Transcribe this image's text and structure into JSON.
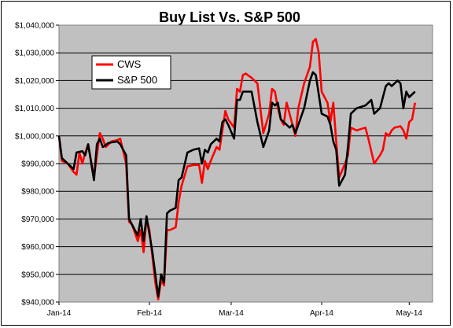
{
  "chart_data": {
    "type": "line",
    "title": "Buy List Vs. S&P 500",
    "xlabel": "",
    "ylabel": "",
    "ylim": [
      940000,
      1040000
    ],
    "y_ticks": [
      "$940,000",
      "$950,000",
      "$960,000",
      "$970,000",
      "$980,000",
      "$990,000",
      "$1,000,000",
      "$1,010,000",
      "$1,020,000",
      "$1,030,000",
      "$1,040,000"
    ],
    "x_ticks": [
      "Jan-14",
      "Feb-14",
      "Mar-14",
      "Apr-14",
      "May-14"
    ],
    "x_tick_positions": [
      0,
      31,
      59,
      90,
      120
    ],
    "xlim": [
      0,
      128
    ],
    "grid": "horizontal",
    "legend_position": "top-left",
    "plot_background": "#c0c0c0",
    "series": [
      {
        "name": "CWS",
        "color": "#ff0000",
        "points": [
          [
            0,
            1000000
          ],
          [
            1,
            991000
          ],
          [
            3,
            990000
          ],
          [
            5,
            987000
          ],
          [
            6,
            986000
          ],
          [
            7,
            994000
          ],
          [
            8,
            990000
          ],
          [
            9,
            994000
          ],
          [
            10,
            997000
          ],
          [
            12,
            985000
          ],
          [
            13,
            993000
          ],
          [
            14,
            1001000
          ],
          [
            15,
            999000
          ],
          [
            16,
            996000
          ],
          [
            18,
            998000
          ],
          [
            20,
            998500
          ],
          [
            21,
            999000
          ],
          [
            23,
            990000
          ],
          [
            24,
            969000
          ],
          [
            25,
            968000
          ],
          [
            27,
            962000
          ],
          [
            28,
            966000
          ],
          [
            29,
            958000
          ],
          [
            30,
            970000
          ],
          [
            31,
            966000
          ],
          [
            33,
            947000
          ],
          [
            34,
            941000
          ],
          [
            35,
            948000
          ],
          [
            36,
            946000
          ],
          [
            37,
            966000
          ],
          [
            38,
            966000
          ],
          [
            40,
            967000
          ],
          [
            41,
            976000
          ],
          [
            42,
            982000
          ],
          [
            44,
            989000
          ],
          [
            46,
            989500
          ],
          [
            48,
            989500
          ],
          [
            49,
            983000
          ],
          [
            50,
            991000
          ],
          [
            51,
            988000
          ],
          [
            52,
            991000
          ],
          [
            54,
            996000
          ],
          [
            55,
            995000
          ],
          [
            56,
            1002000
          ],
          [
            57,
            1009000
          ],
          [
            58,
            1006000
          ],
          [
            60,
            1003000
          ],
          [
            61,
            1017000
          ],
          [
            62,
            1016000
          ],
          [
            63,
            1022000
          ],
          [
            64,
            1022500
          ],
          [
            66,
            1021000
          ],
          [
            68,
            1019000
          ],
          [
            70,
            1001000
          ],
          [
            72,
            1008000
          ],
          [
            73,
            1017000
          ],
          [
            74,
            1016000
          ],
          [
            75,
            1010000
          ],
          [
            76,
            1006000
          ],
          [
            77,
            1004000
          ],
          [
            78,
            1012000
          ],
          [
            80,
            1004000
          ],
          [
            81,
            1000000
          ],
          [
            82,
            1010000
          ],
          [
            84,
            1019000
          ],
          [
            86,
            1025000
          ],
          [
            87,
            1034000
          ],
          [
            88,
            1035000
          ],
          [
            89,
            1030000
          ],
          [
            90,
            1016000
          ],
          [
            92,
            1012000
          ],
          [
            93,
            1005000
          ],
          [
            94,
            1012000
          ],
          [
            95,
            998000
          ],
          [
            96,
            985000
          ],
          [
            98,
            990000
          ],
          [
            99,
            993000
          ],
          [
            100,
            1003000
          ],
          [
            102,
            1002000
          ],
          [
            105,
            1003000
          ],
          [
            106,
            999000
          ],
          [
            108,
            990000
          ],
          [
            110,
            993000
          ],
          [
            111,
            995000
          ],
          [
            112,
            1001000
          ],
          [
            113,
            1000000
          ],
          [
            114,
            1002000
          ],
          [
            115,
            1003000
          ],
          [
            117,
            1003500
          ],
          [
            118,
            1002000
          ],
          [
            119,
            999000
          ],
          [
            120,
            1005000
          ],
          [
            121,
            1006000
          ],
          [
            122,
            1012000
          ]
        ]
      },
      {
        "name": "S&P 500",
        "color": "#000000",
        "points": [
          [
            0,
            1000000
          ],
          [
            1,
            992000
          ],
          [
            3,
            990000
          ],
          [
            5,
            988000
          ],
          [
            6,
            994000
          ],
          [
            8,
            994500
          ],
          [
            9,
            993000
          ],
          [
            10,
            997000
          ],
          [
            12,
            984000
          ],
          [
            13,
            997000
          ],
          [
            14,
            999000
          ],
          [
            15,
            996000
          ],
          [
            17,
            997500
          ],
          [
            20,
            998000
          ],
          [
            21,
            997000
          ],
          [
            23,
            993000
          ],
          [
            24,
            970000
          ],
          [
            25,
            968000
          ],
          [
            27,
            964000
          ],
          [
            28,
            970000
          ],
          [
            29,
            962000
          ],
          [
            30,
            971000
          ],
          [
            32,
            958000
          ],
          [
            34,
            942000
          ],
          [
            35,
            950000
          ],
          [
            36,
            947000
          ],
          [
            37,
            972000
          ],
          [
            38,
            973000
          ],
          [
            40,
            974000
          ],
          [
            41,
            984000
          ],
          [
            42,
            985000
          ],
          [
            44,
            994000
          ],
          [
            46,
            995000
          ],
          [
            48,
            995500
          ],
          [
            49,
            990000
          ],
          [
            50,
            995000
          ],
          [
            51,
            994000
          ],
          [
            52,
            997000
          ],
          [
            54,
            999000
          ],
          [
            55,
            998000
          ],
          [
            56,
            1005000
          ],
          [
            57,
            1006000
          ],
          [
            58,
            1004000
          ],
          [
            60,
            999000
          ],
          [
            61,
            1013000
          ],
          [
            62,
            1013000
          ],
          [
            63,
            1016000
          ],
          [
            64,
            1016000
          ],
          [
            66,
            1016000
          ],
          [
            68,
            1005000
          ],
          [
            70,
            996000
          ],
          [
            72,
            1002000
          ],
          [
            73,
            1012000
          ],
          [
            74,
            1011000
          ],
          [
            75,
            1012000
          ],
          [
            76,
            1006000
          ],
          [
            78,
            1004000
          ],
          [
            79,
            1003000
          ],
          [
            80,
            1004000
          ],
          [
            81,
            1001000
          ],
          [
            82,
            1004000
          ],
          [
            84,
            1010000
          ],
          [
            86,
            1020000
          ],
          [
            87,
            1023000
          ],
          [
            88,
            1022000
          ],
          [
            90,
            1008000
          ],
          [
            92,
            1007000
          ],
          [
            93,
            1004000
          ],
          [
            94,
            998000
          ],
          [
            95,
            995000
          ],
          [
            96,
            982000
          ],
          [
            98,
            986000
          ],
          [
            99,
            996000
          ],
          [
            100,
            1008000
          ],
          [
            102,
            1010000
          ],
          [
            105,
            1011000
          ],
          [
            106,
            1012000
          ],
          [
            107,
            1013000
          ],
          [
            108,
            1008000
          ],
          [
            110,
            1010000
          ],
          [
            112,
            1018000
          ],
          [
            113,
            1019000
          ],
          [
            114,
            1018000
          ],
          [
            116,
            1020000
          ],
          [
            117,
            1019000
          ],
          [
            118,
            1010000
          ],
          [
            119,
            1016000
          ],
          [
            120,
            1014000
          ],
          [
            121,
            1015000
          ],
          [
            122,
            1016000
          ]
        ]
      }
    ]
  }
}
